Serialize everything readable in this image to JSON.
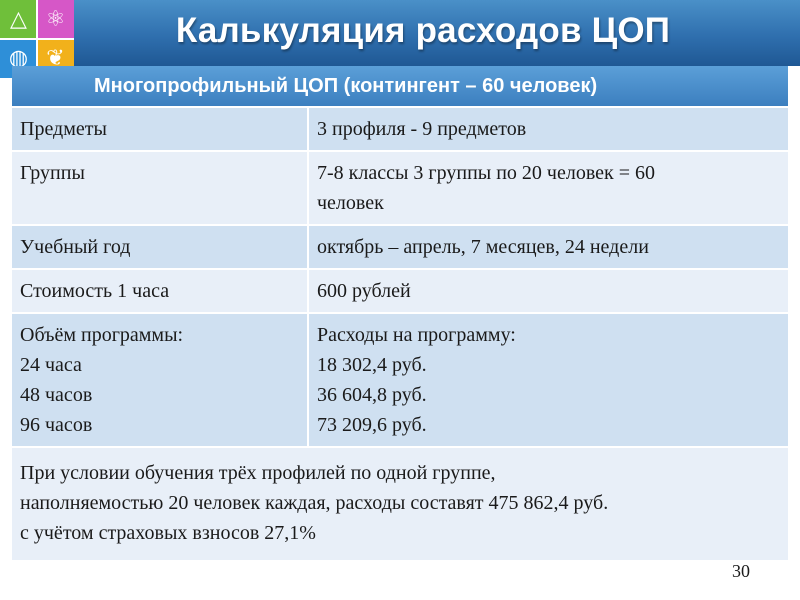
{
  "title": "Калькуляция расходов ЦОП",
  "subheader": "Многопрофильный ЦОП  (контингент – 60 человек)",
  "rows": [
    {
      "left": "Предметы",
      "right": [
        "3 профиля - 9 предметов"
      ]
    },
    {
      "left": "Группы",
      "right": [
        "7-8 классы 3 группы по 20 человек = 60",
        "человек"
      ]
    },
    {
      "left": "Учебный год",
      "right": [
        "октябрь – апрель, 7 месяцев, 24 недели"
      ]
    },
    {
      "left": "Стоимость 1 часа",
      "right": [
        "600 рублей"
      ]
    }
  ],
  "program": {
    "left": [
      "Объём программы:",
      "24 часа",
      "48 часов",
      "96 часов"
    ],
    "right": [
      "Расходы на программу:",
      "18 302,4 руб.",
      "36 604,8 руб.",
      "73 209,6 руб."
    ]
  },
  "summary": [
    "При условии обучения трёх профилей по одной группе,",
    "наполняемостью 20 человек каждая, расходы составят 475 862,4 руб.",
    "с учётом страховых взносов 27,1%"
  ],
  "page_number": "30",
  "icons": [
    "triangle-icon",
    "atom-icon",
    "globe-icon",
    "butterfly-icon"
  ]
}
